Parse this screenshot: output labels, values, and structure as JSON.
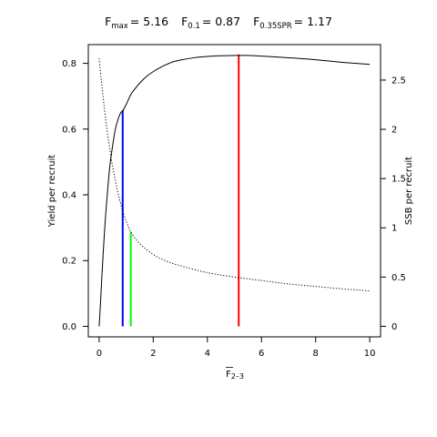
{
  "chart_data": {
    "type": "line",
    "title": {
      "parts": [
        {
          "main": "F",
          "sub": "max",
          "value": "= 5.16"
        },
        {
          "main": "F",
          "sub": "0.1",
          "value": "= 0.87"
        },
        {
          "main": "F",
          "sub": "0.35SPR",
          "value": "= 1.17"
        }
      ]
    },
    "xlabel": {
      "main": "F",
      "sub": "2–3",
      "overline": true
    },
    "ylabel": "Yield per recruit",
    "y2label": "SSB per recruit",
    "xlim": [
      -0.4,
      10.4
    ],
    "ylim": [
      -0.032,
      0.857
    ],
    "y2lim": [
      -0.107,
      2.86
    ],
    "x_ticks": [
      0,
      2,
      4,
      6,
      8,
      10
    ],
    "y_ticks": [
      0.0,
      0.2,
      0.4,
      0.6,
      0.8
    ],
    "y2_ticks": [
      0,
      0.5,
      1,
      1.5,
      2,
      2.5
    ],
    "x_tick_labels": [
      "0",
      "2",
      "4",
      "6",
      "8",
      "10"
    ],
    "y_tick_labels": [
      "0.0",
      "0.2",
      "0.4",
      "0.6",
      "0.8"
    ],
    "y2_tick_labels": [
      "0",
      "0.5",
      "1",
      "1.5",
      "2",
      "2.5"
    ],
    "series": [
      {
        "axis": "left",
        "style": "solid",
        "color": "#000000",
        "x": [
          0,
          0.05,
          0.1,
          0.2,
          0.3,
          0.4,
          0.5,
          0.6,
          0.7,
          0.8,
          0.87,
          1.0,
          1.17,
          1.3,
          1.5,
          1.75,
          2.0,
          2.25,
          2.5,
          2.75,
          3.0,
          3.5,
          4.0,
          4.5,
          5.16,
          5.5,
          6.0,
          7.0,
          8.0,
          9.0,
          10.0
        ],
        "y": [
          0.0,
          0.07,
          0.15,
          0.29,
          0.4,
          0.49,
          0.55,
          0.6,
          0.63,
          0.65,
          0.655,
          0.675,
          0.705,
          0.72,
          0.74,
          0.76,
          0.775,
          0.787,
          0.797,
          0.805,
          0.81,
          0.817,
          0.821,
          0.823,
          0.824,
          0.824,
          0.822,
          0.817,
          0.811,
          0.803,
          0.797
        ]
      },
      {
        "axis": "right",
        "style": "dotted",
        "color": "#000000",
        "x": [
          0,
          0.1,
          0.2,
          0.3,
          0.4,
          0.5,
          0.6,
          0.7,
          0.87,
          1.0,
          1.17,
          1.5,
          2.0,
          2.5,
          3.0,
          4.0,
          5.0,
          6.0,
          7.0,
          8.0,
          9.0,
          10.0
        ],
        "y": [
          2.72,
          2.45,
          2.2,
          1.98,
          1.79,
          1.62,
          1.48,
          1.35,
          1.17,
          1.07,
          0.96,
          0.84,
          0.73,
          0.66,
          0.615,
          0.545,
          0.5,
          0.465,
          0.43,
          0.405,
          0.38,
          0.36
        ]
      }
    ],
    "reference_lines": [
      {
        "x": 0.87,
        "y": 0.655,
        "color": "#0000ff"
      },
      {
        "x": 1.17,
        "y": 0.285,
        "color": "#00ff00"
      },
      {
        "x": 5.16,
        "y": 0.824,
        "color": "#ff0000"
      }
    ],
    "grid": false,
    "legend": "none"
  }
}
